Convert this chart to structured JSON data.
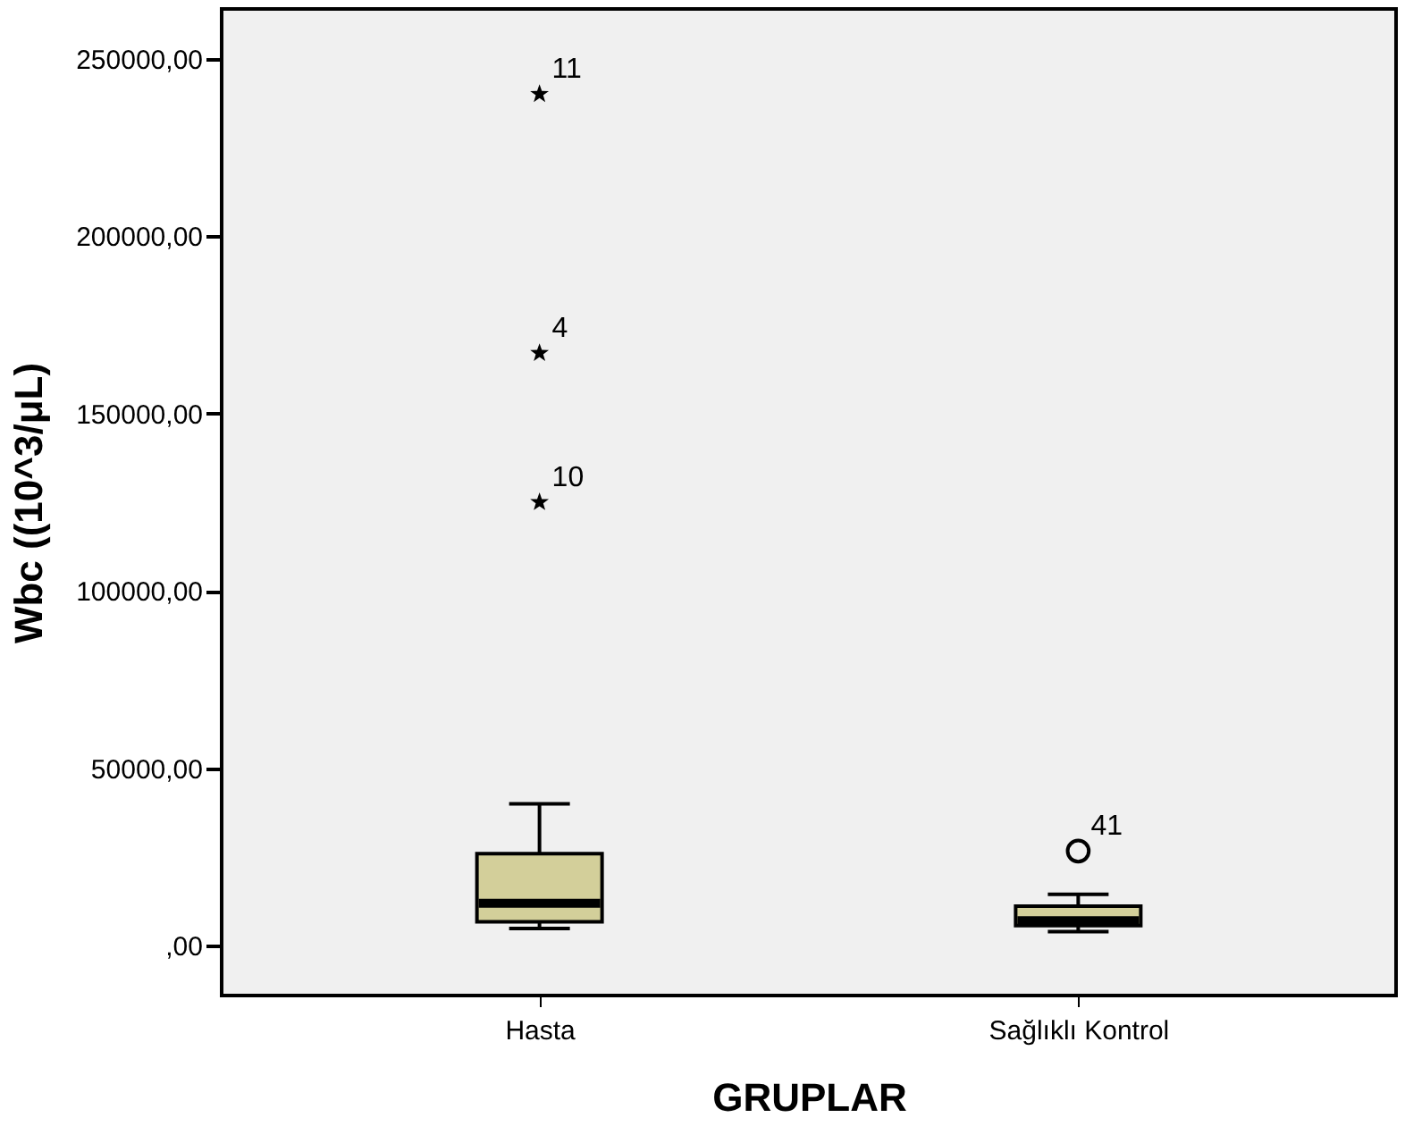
{
  "chart_data": {
    "type": "box",
    "xlabel": "GRUPLAR",
    "ylabel": "Wbc ((10^3/μL)",
    "categories": [
      "Hasta",
      "Sağlıklı Kontrol"
    ],
    "boxes": [
      {
        "low": 4900,
        "q1": 6800,
        "median": 12000,
        "q3": 26000,
        "high": 40000
      },
      {
        "low": 4000,
        "q1": 5700,
        "median": 7100,
        "q3": 11200,
        "high": 14500
      }
    ],
    "series": [
      {
        "type": "scatter",
        "marker": "star",
        "color": "#000000",
        "x": [
          "Hasta",
          "Hasta",
          "Hasta"
        ],
        "values": [
          240000,
          167000,
          125000
        ]
      },
      {
        "type": "scatter",
        "marker": "circle",
        "color": "#000000",
        "x": [
          "Sağlıklı Kontrol"
        ],
        "values": [
          26700
        ]
      }
    ],
    "color": "#d3cf9a",
    "ylim": [
      -14000,
      264000
    ],
    "yticks": [
      {
        "value": 0,
        "label": ",00"
      },
      {
        "value": 50000,
        "label": "50000,00"
      },
      {
        "value": 100000,
        "label": "100000,00"
      },
      {
        "value": 150000,
        "label": "150000,00"
      },
      {
        "value": 200000,
        "label": "200000,00"
      },
      {
        "value": 250000,
        "label": "250000,00"
      }
    ],
    "annotations": [
      {
        "text": "11",
        "x": "Hasta",
        "y": 240000
      },
      {
        "text": "4",
        "x": "Hasta",
        "y": 167000
      },
      {
        "text": "10",
        "x": "Hasta",
        "y": 125000
      },
      {
        "text": "41",
        "x": "Sağlıklı Kontrol",
        "y": 26700
      }
    ],
    "grid": false
  }
}
